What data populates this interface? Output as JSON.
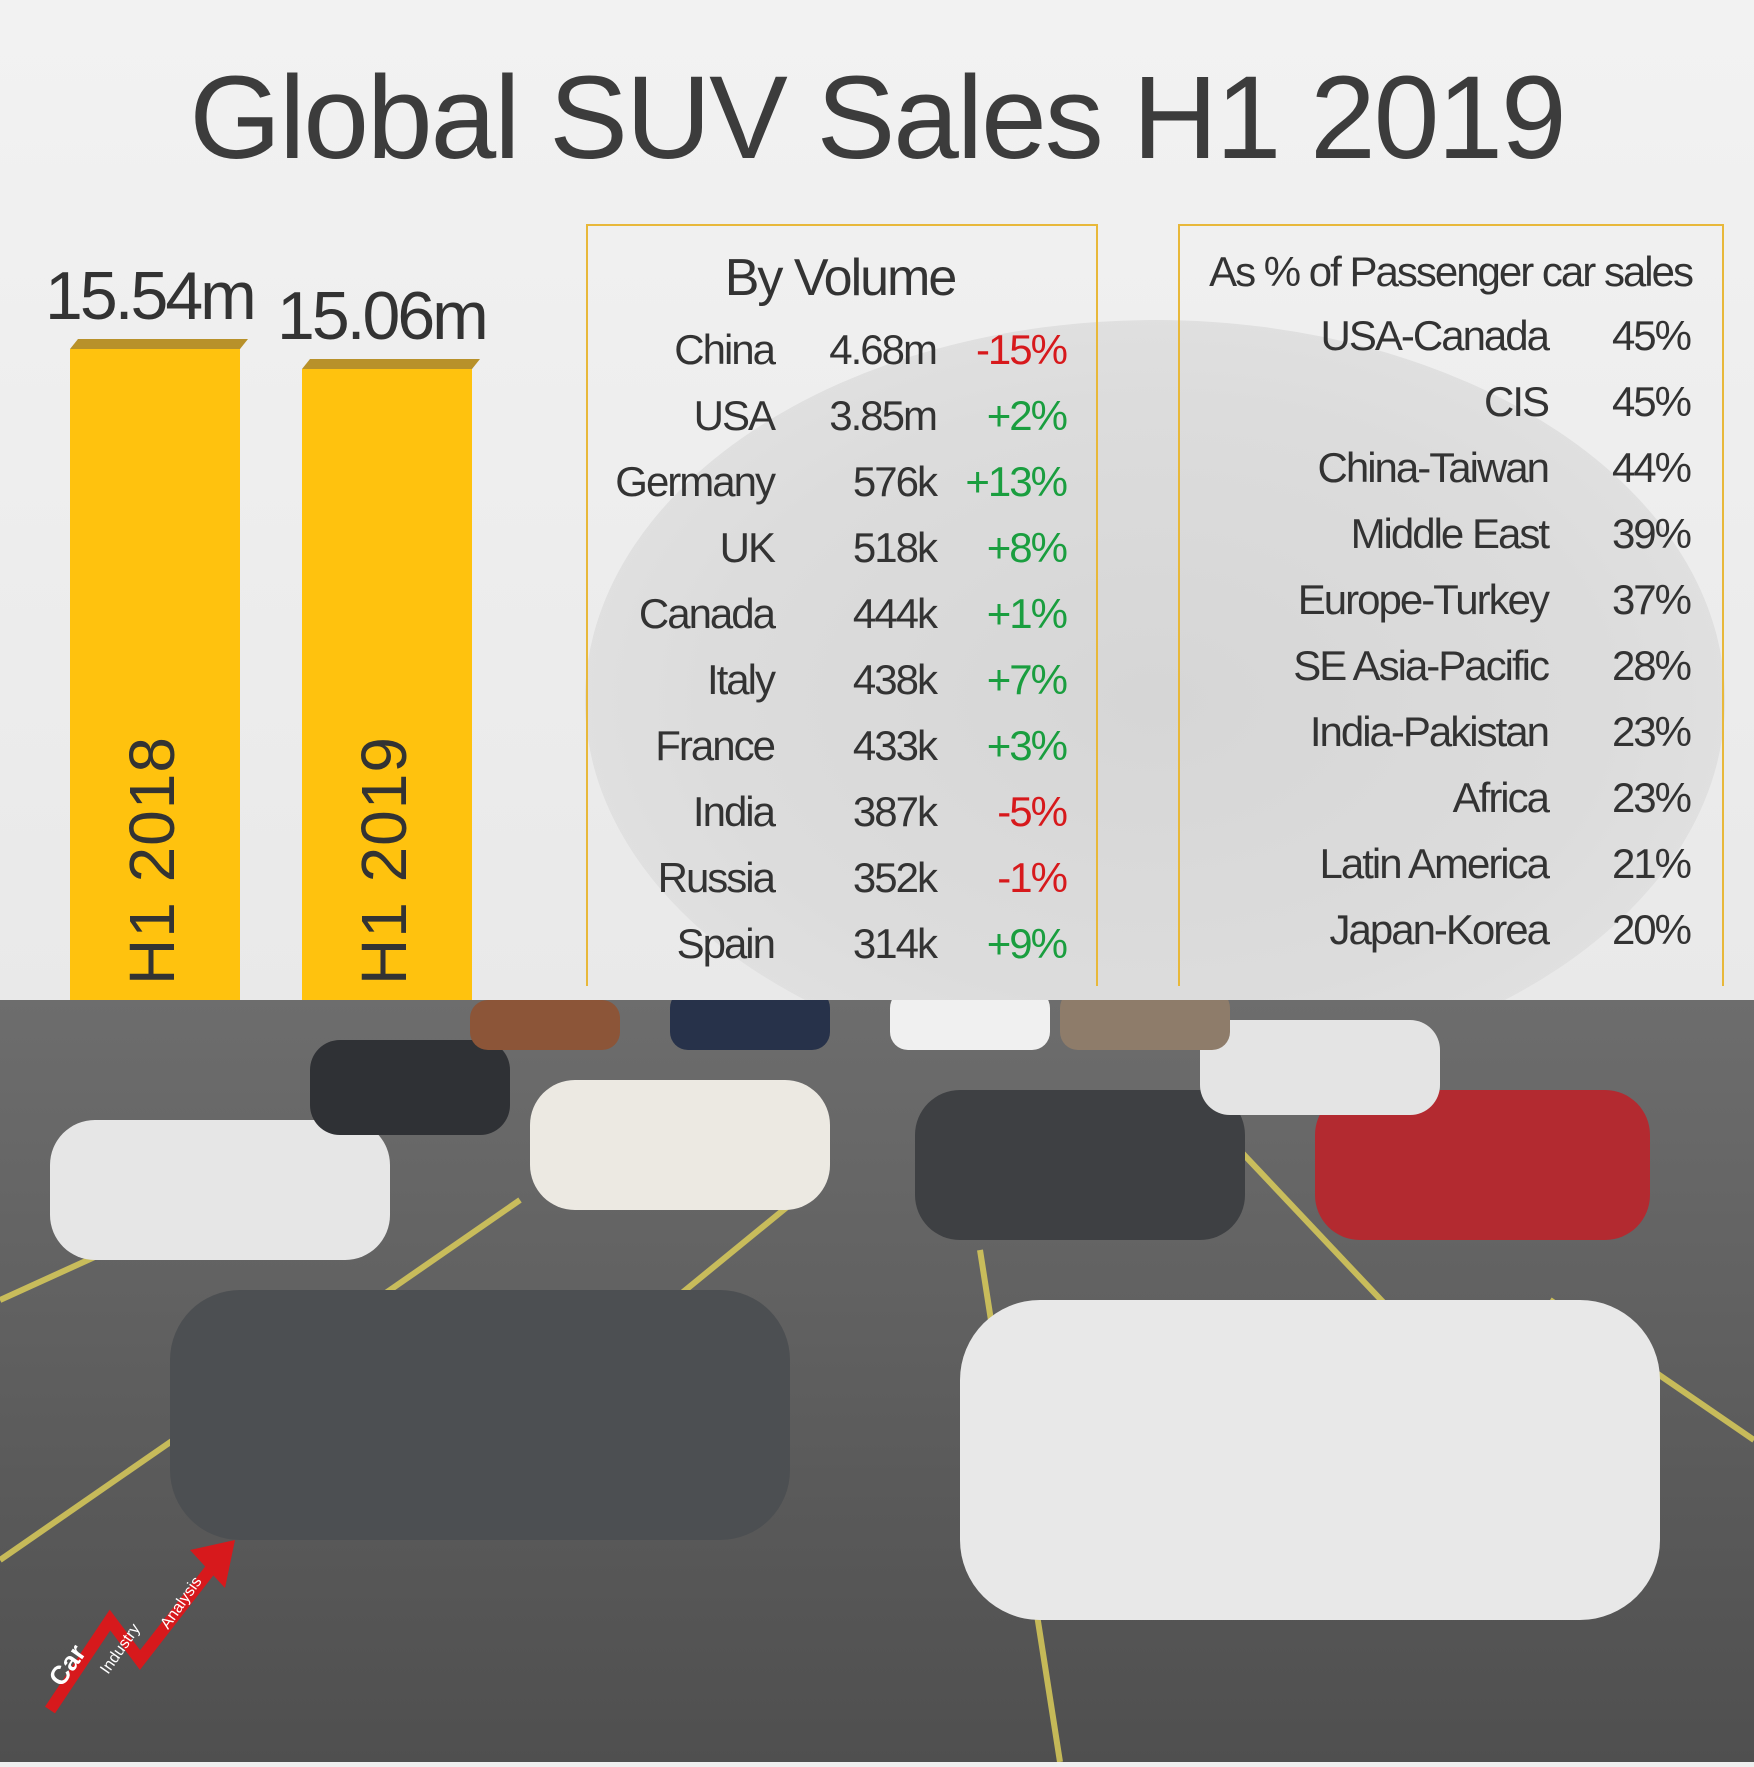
{
  "title": "Global SUV Sales H1 2019",
  "chart_data": [
    {
      "type": "bar",
      "categories": [
        "H1 2018",
        "H1 2019"
      ],
      "values": [
        15.54,
        15.06
      ],
      "value_labels": [
        "15.54m",
        "15.06m"
      ],
      "color": "#ffc20e"
    },
    {
      "type": "table",
      "title": "By Volume",
      "rows": [
        {
          "country": "China",
          "volume": "4.68m",
          "change": "-15%"
        },
        {
          "country": "USA",
          "volume": "3.85m",
          "change": "+2%"
        },
        {
          "country": "Germany",
          "volume": "576k",
          "change": "+13%"
        },
        {
          "country": "UK",
          "volume": "518k",
          "change": "+8%"
        },
        {
          "country": "Canada",
          "volume": "444k",
          "change": "+1%"
        },
        {
          "country": "Italy",
          "volume": "438k",
          "change": "+7%"
        },
        {
          "country": "France",
          "volume": "433k",
          "change": "+3%"
        },
        {
          "country": "India",
          "volume": "387k",
          "change": "-5%"
        },
        {
          "country": "Russia",
          "volume": "352k",
          "change": "-1%"
        },
        {
          "country": "Spain",
          "volume": "314k",
          "change": "+9%"
        }
      ]
    },
    {
      "type": "table",
      "title": "As % of Passenger car sales",
      "rows": [
        {
          "region": "USA-Canada",
          "share": "45%"
        },
        {
          "region": "CIS",
          "share": "45%"
        },
        {
          "region": "China-Taiwan",
          "share": "44%"
        },
        {
          "region": "Middle East",
          "share": "39%"
        },
        {
          "region": "Europe-Turkey",
          "share": "37%"
        },
        {
          "region": "SE Asia-Pacific",
          "share": "28%"
        },
        {
          "region": "India-Pakistan",
          "share": "23%"
        },
        {
          "region": "Africa",
          "share": "23%"
        },
        {
          "region": "Latin America",
          "share": "21%"
        },
        {
          "region": "Japan-Korea",
          "share": "20%"
        }
      ]
    }
  ],
  "colors": {
    "bar": "#ffc20e",
    "bar_top": "#b8912a",
    "negative": "#d7191c",
    "positive": "#1a9e3f",
    "panel_border": "#e8b83a",
    "logo_arrow": "#d7191c"
  },
  "logo": {
    "word1": "Car",
    "word2": "Industry",
    "word3": "Analysis"
  }
}
